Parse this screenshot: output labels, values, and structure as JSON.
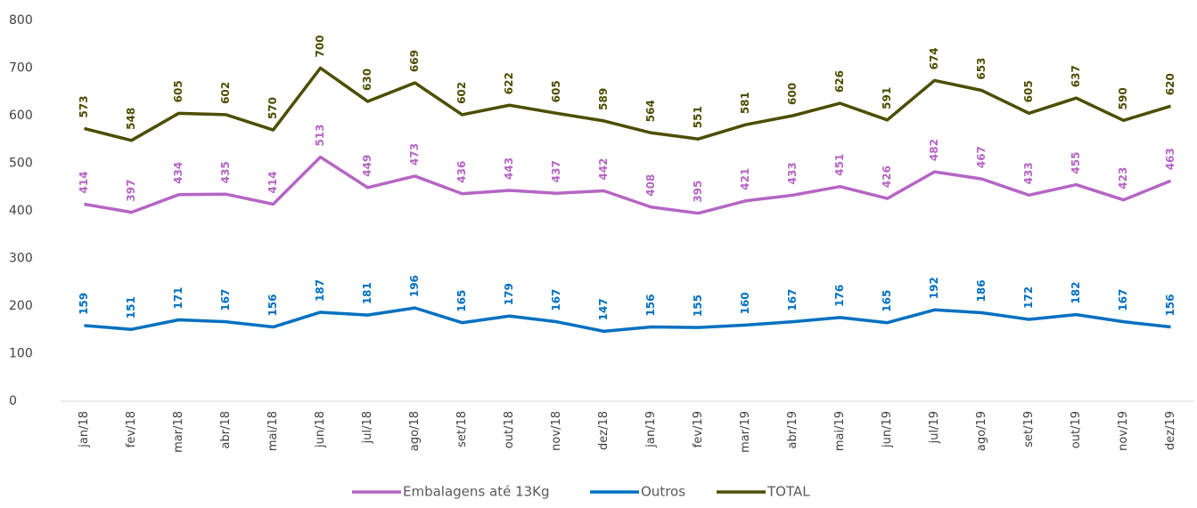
{
  "chart_data": {
    "type": "line",
    "categories": [
      "jan/18",
      "fev/18",
      "mar/18",
      "abr/18",
      "mai/18",
      "jun/18",
      "jul/18",
      "ago/18",
      "set/18",
      "out/18",
      "nov/18",
      "dez/18",
      "jan/19",
      "fev/19",
      "mar/19",
      "abr/19",
      "mai/19",
      "jun/19",
      "jul/19",
      "ago/19",
      "set/19",
      "out/19",
      "nov/19",
      "dez/19"
    ],
    "series": [
      {
        "name": "Embalagens até 13Kg",
        "color": "#b565c4",
        "values": [
          414,
          397,
          434,
          435,
          414,
          513,
          449,
          473,
          436,
          443,
          437,
          442,
          408,
          395,
          421,
          433,
          451,
          426,
          482,
          467,
          433,
          455,
          423,
          463
        ]
      },
      {
        "name": "Outros",
        "color": "#0070c0",
        "values": [
          159,
          151,
          171,
          167,
          156,
          187,
          181,
          196,
          165,
          179,
          167,
          147,
          156,
          155,
          160,
          167,
          176,
          165,
          192,
          186,
          172,
          182,
          167,
          156
        ]
      },
      {
        "name": "TOTAL",
        "color": "#4d4d00",
        "values": [
          573,
          548,
          605,
          602,
          570,
          700,
          630,
          669,
          602,
          622,
          605,
          589,
          564,
          551,
          581,
          600,
          626,
          591,
          674,
          653,
          605,
          637,
          590,
          620
        ]
      }
    ],
    "ylim": [
      0,
      800
    ],
    "yticks": [
      0,
      100,
      200,
      300,
      400,
      500,
      600,
      700,
      800
    ],
    "legend": "bottom"
  }
}
